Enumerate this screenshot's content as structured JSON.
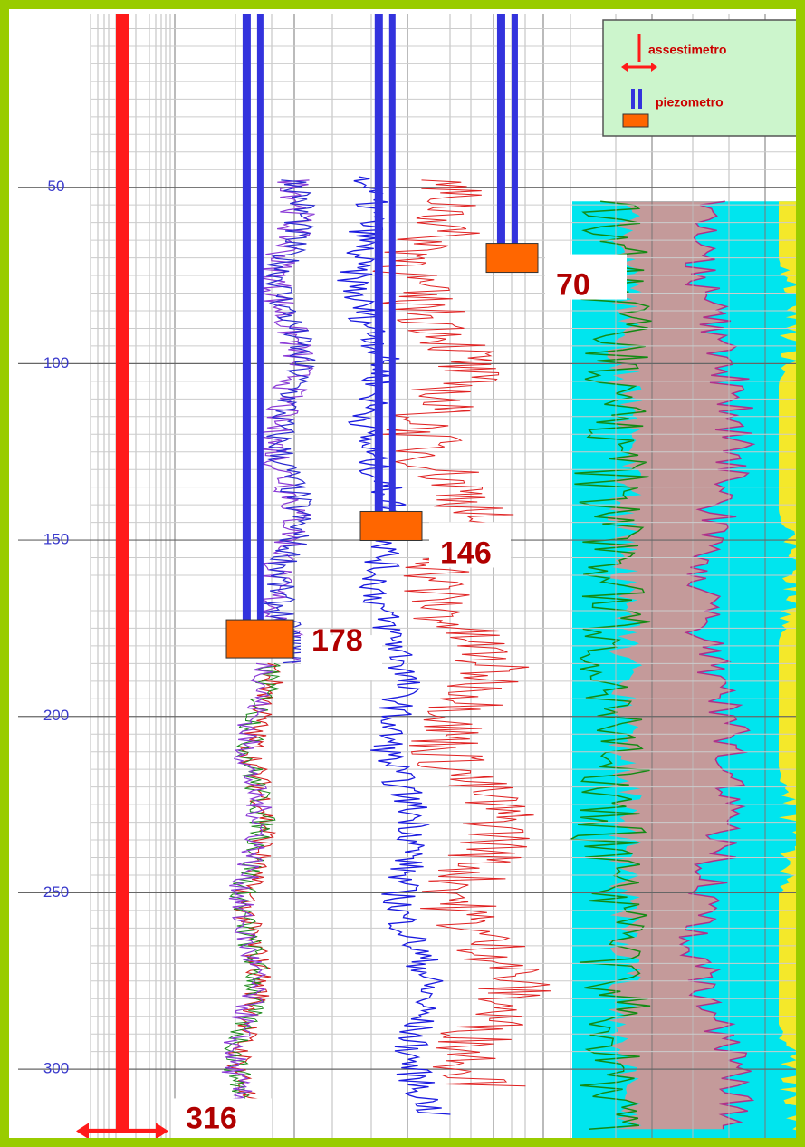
{
  "chart_data": {
    "type": "well-log",
    "ylim": [
      0,
      320
    ],
    "yticks": [
      50,
      100,
      150,
      200,
      250,
      300
    ],
    "grid": true,
    "legend_position": "upper right",
    "extensometers": {
      "name": "assestimetro",
      "color": "#ff1a1a",
      "depths": [
        316
      ]
    },
    "piezometers": {
      "name": "piezometro",
      "color": "#3333dd",
      "box_color": "#ff6600",
      "depths": [
        178,
        146,
        70
      ]
    }
  }
}
